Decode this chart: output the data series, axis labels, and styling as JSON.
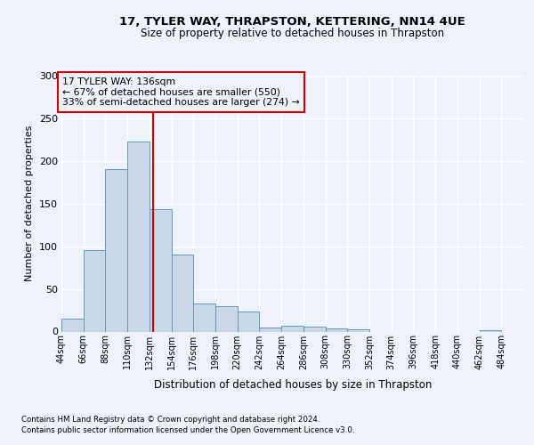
{
  "title1": "17, TYLER WAY, THRAPSTON, KETTERING, NN14 4UE",
  "title2": "Size of property relative to detached houses in Thrapston",
  "xlabel": "Distribution of detached houses by size in Thrapston",
  "ylabel": "Number of detached properties",
  "footnote1": "Contains HM Land Registry data © Crown copyright and database right 2024.",
  "footnote2": "Contains public sector information licensed under the Open Government Licence v3.0.",
  "annotation_line1": "17 TYLER WAY: 136sqm",
  "annotation_line2": "← 67% of detached houses are smaller (550)",
  "annotation_line3": "33% of semi-detached houses are larger (274) →",
  "property_size": 136,
  "bin_edges": [
    44,
    66,
    88,
    110,
    132,
    154,
    176,
    198,
    220,
    242,
    264,
    286,
    308,
    330,
    352,
    374,
    396,
    418,
    440,
    462,
    484
  ],
  "bar_heights": [
    15,
    95,
    190,
    223,
    143,
    90,
    33,
    30,
    23,
    5,
    7,
    6,
    4,
    3,
    0,
    0,
    0,
    0,
    0,
    2
  ],
  "bar_color": "#c8d8e8",
  "bar_edge_color": "#6699bb",
  "vline_x": 136,
  "vline_color": "#cc0000",
  "annotation_box_edge_color": "#cc0000",
  "background_color": "#eef2fb",
  "grid_color": "#ffffff",
  "ylim": [
    0,
    300
  ],
  "yticks": [
    0,
    50,
    100,
    150,
    200,
    250,
    300
  ]
}
